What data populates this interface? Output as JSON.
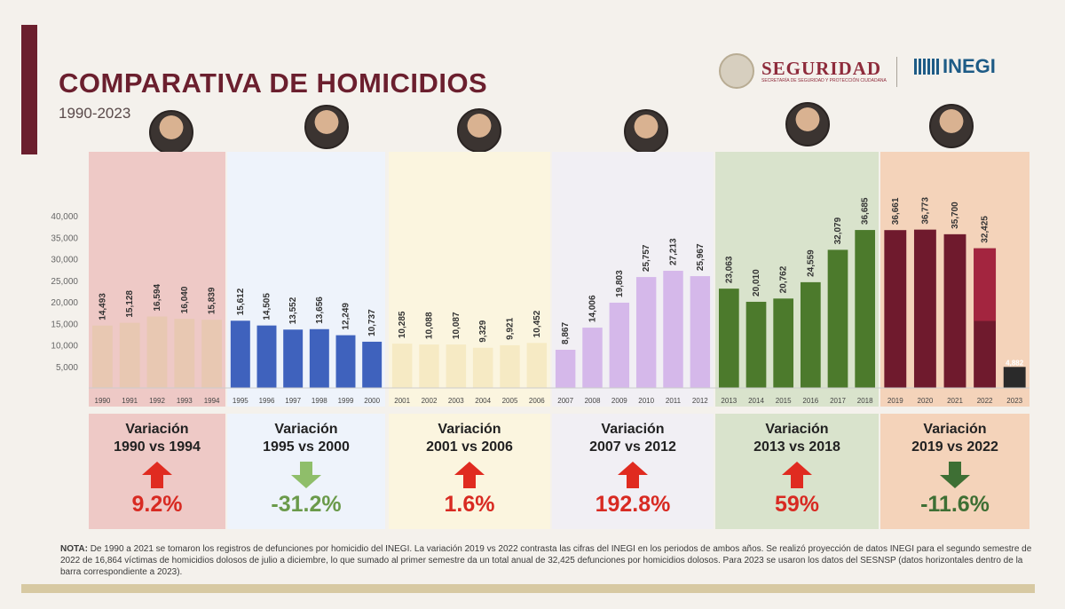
{
  "header": {
    "title": "COMPARATIVA DE HOMICIDIOS",
    "subtitle": "1990-2023",
    "logo_seguridad": "SEGURIDAD",
    "logo_seguridad_sub": "SECRETARÍA DE SEGURIDAD Y PROTECCIÓN CIUDADANA",
    "logo_inegi": "INEGI"
  },
  "periods": [
    {
      "bg": "#eec9c6",
      "bar": "#e8c8b2",
      "variation_label_1": "Variación",
      "variation_label_2": "1990 vs 1994",
      "direction": "up",
      "arrow_color": "#e02b20",
      "value": "9.2%",
      "value_color": "#d82a22"
    },
    {
      "bg": "#eef3fb",
      "bar": "#3f62bd",
      "variation_label_1": "Variación",
      "variation_label_2": "1995 vs 2000",
      "direction": "down",
      "arrow_color": "#8fbe6a",
      "value": "-31.2%",
      "value_color": "#6a9a4a"
    },
    {
      "bg": "#fbf5df",
      "bar": "#f6eac4",
      "variation_label_1": "Variación",
      "variation_label_2": "2001 vs 2006",
      "direction": "up",
      "arrow_color": "#e02b20",
      "value": "1.6%",
      "value_color": "#d82a22"
    },
    {
      "bg": "#f1eff4",
      "bar": "#d5b8ea",
      "variation_label_1": "Variación",
      "variation_label_2": "2007 vs 2012",
      "direction": "up",
      "arrow_color": "#e02b20",
      "value": "192.8%",
      "value_color": "#d82a22"
    },
    {
      "bg": "#d9e3cc",
      "bar": "#4c7a2c",
      "variation_label_1": "Variación",
      "variation_label_2": "2013 vs 2018",
      "direction": "up",
      "arrow_color": "#e02b20",
      "value": "59%",
      "value_color": "#d82a22"
    },
    {
      "bg": "#f4d3ba",
      "bar": "#6f1a2d",
      "variation_label_1": "Variación",
      "variation_label_2": "2019 vs 2022",
      "direction": "down",
      "arrow_color": "#3e6f34",
      "value": "-11.6%",
      "value_color": "#3e6f34"
    }
  ],
  "chart_data": {
    "type": "bar",
    "title": "COMPARATIVA DE HOMICIDIOS",
    "subtitle": "1990-2023",
    "categories": [
      "1990",
      "1991",
      "1992",
      "1993",
      "1994",
      "1995",
      "1996",
      "1997",
      "1998",
      "1999",
      "2000",
      "2001",
      "2002",
      "2003",
      "2004",
      "2005",
      "2006",
      "2007",
      "2008",
      "2009",
      "2010",
      "2011",
      "2012",
      "2013",
      "2014",
      "2015",
      "2016",
      "2017",
      "2018",
      "2019",
      "2020",
      "2021",
      "2022",
      "2023"
    ],
    "values": [
      14493,
      15128,
      16594,
      16040,
      15839,
      15612,
      14505,
      13552,
      13656,
      12249,
      10737,
      10285,
      10088,
      10087,
      9329,
      9921,
      10452,
      8867,
      14006,
      19803,
      25757,
      27213,
      25967,
      23063,
      20010,
      20762,
      24559,
      32079,
      36685,
      36661,
      36773,
      35700,
      32425,
      4882
    ],
    "value_labels": [
      "14,493",
      "15,128",
      "16,594",
      "16,040",
      "15,839",
      "15,612",
      "14,505",
      "13,552",
      "13,656",
      "12,249",
      "10,737",
      "10,285",
      "10,088",
      "10,087",
      "9,329",
      "9,921",
      "10,452",
      "8,867",
      "14,006",
      "19,803",
      "25,757",
      "27,213",
      "25,967",
      "23,063",
      "20,010",
      "20,762",
      "24,559",
      "32,079",
      "36,685",
      "36,661",
      "36,773",
      "35,700",
      "32,425",
      "4,882"
    ],
    "period_of_bar": [
      0,
      0,
      0,
      0,
      0,
      1,
      1,
      1,
      1,
      1,
      1,
      2,
      2,
      2,
      2,
      2,
      2,
      3,
      3,
      3,
      3,
      3,
      3,
      4,
      4,
      4,
      4,
      4,
      4,
      5,
      5,
      5,
      5,
      5
    ],
    "segment_2022_first_semester": 15561,
    "yticks": [
      5000,
      10000,
      15000,
      20000,
      25000,
      30000,
      35000,
      40000
    ],
    "ytick_labels": [
      "5,000",
      "10,000",
      "15,000",
      "20,000",
      "25,000",
      "30,000",
      "35,000",
      "40,000"
    ],
    "ylim": [
      0,
      40000
    ],
    "grid": false,
    "legend": "none"
  },
  "note": {
    "label": "NOTA:",
    "text": "De 1990 a 2021 se tomaron los registros de defunciones por homicidio del INEGI. La variación 2019 vs 2022 contrasta las cifras del INEGI en los periodos de ambos años. Se realizó proyección de datos INEGI para el segundo semestre de 2022 de 16,864 víctimas de homicidios dolosos de julio a diciembre, lo que sumado al primer semestre da un total anual de 32,425 defunciones por homicidios dolosos. Para 2023 se usaron los datos del SESNSP (datos horizontales dentro de la barra correspondiente a 2023)."
  }
}
